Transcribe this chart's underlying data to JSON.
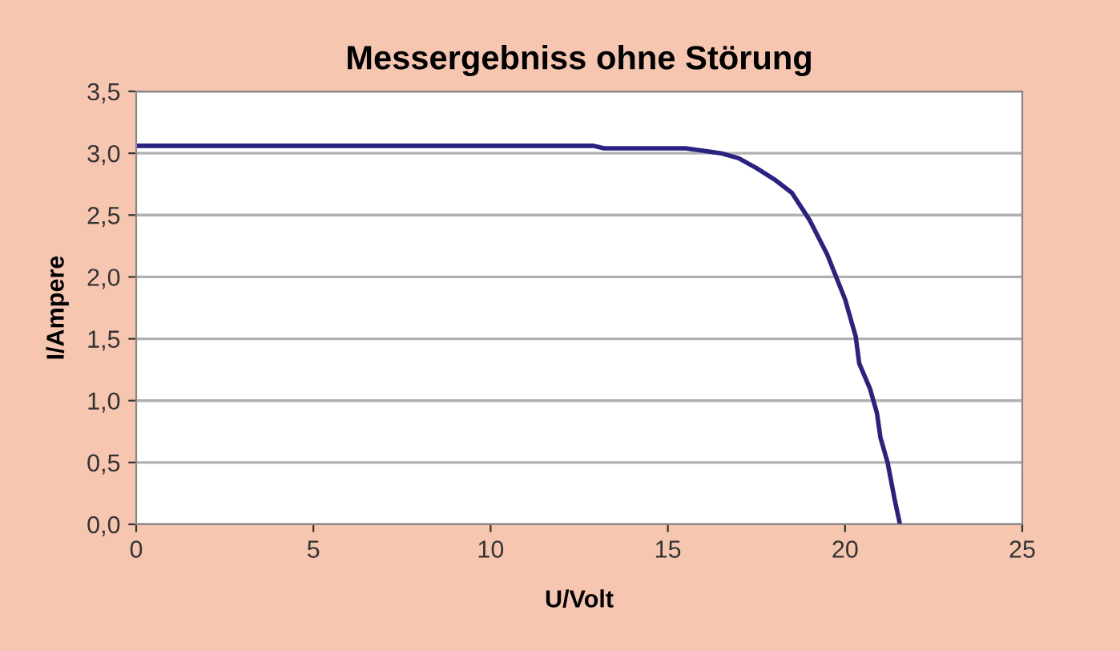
{
  "chart_data": {
    "type": "line",
    "title": "Messergebniss ohne Störung",
    "xlabel": "U/Volt",
    "ylabel": "I/Ampere",
    "series": [
      {
        "color": "#2a2280",
        "x": [
          0,
          12.9,
          13.2,
          15.5,
          16,
          16.5,
          17,
          17.5,
          18,
          18.5,
          19,
          19.5,
          20,
          20.3,
          20.4,
          20.7,
          20.9,
          21.0,
          21.2,
          21.4,
          21.55
        ],
        "values": [
          3.06,
          3.06,
          3.04,
          3.04,
          3.02,
          3.0,
          2.96,
          2.88,
          2.79,
          2.68,
          2.46,
          2.18,
          1.82,
          1.52,
          1.3,
          1.1,
          0.9,
          0.7,
          0.5,
          0.2,
          0
        ]
      }
    ],
    "xlim": [
      0,
      25
    ],
    "xticks": [
      0,
      5,
      10,
      15,
      20,
      25
    ],
    "ylim": [
      0,
      3.5
    ],
    "yticks": [
      {
        "value": 0,
        "label": "0,0"
      },
      {
        "value": 0.5,
        "label": "0,5"
      },
      {
        "value": 1,
        "label": "1,0"
      },
      {
        "value": 1.5,
        "label": "1,5"
      },
      {
        "value": 2,
        "label": "2,0"
      },
      {
        "value": 2.5,
        "label": "2,5"
      },
      {
        "value": 3,
        "label": "3,0"
      },
      {
        "value": 3.5,
        "label": "3,5"
      }
    ],
    "grid": "y",
    "marker": "none",
    "line_style": "solid"
  }
}
